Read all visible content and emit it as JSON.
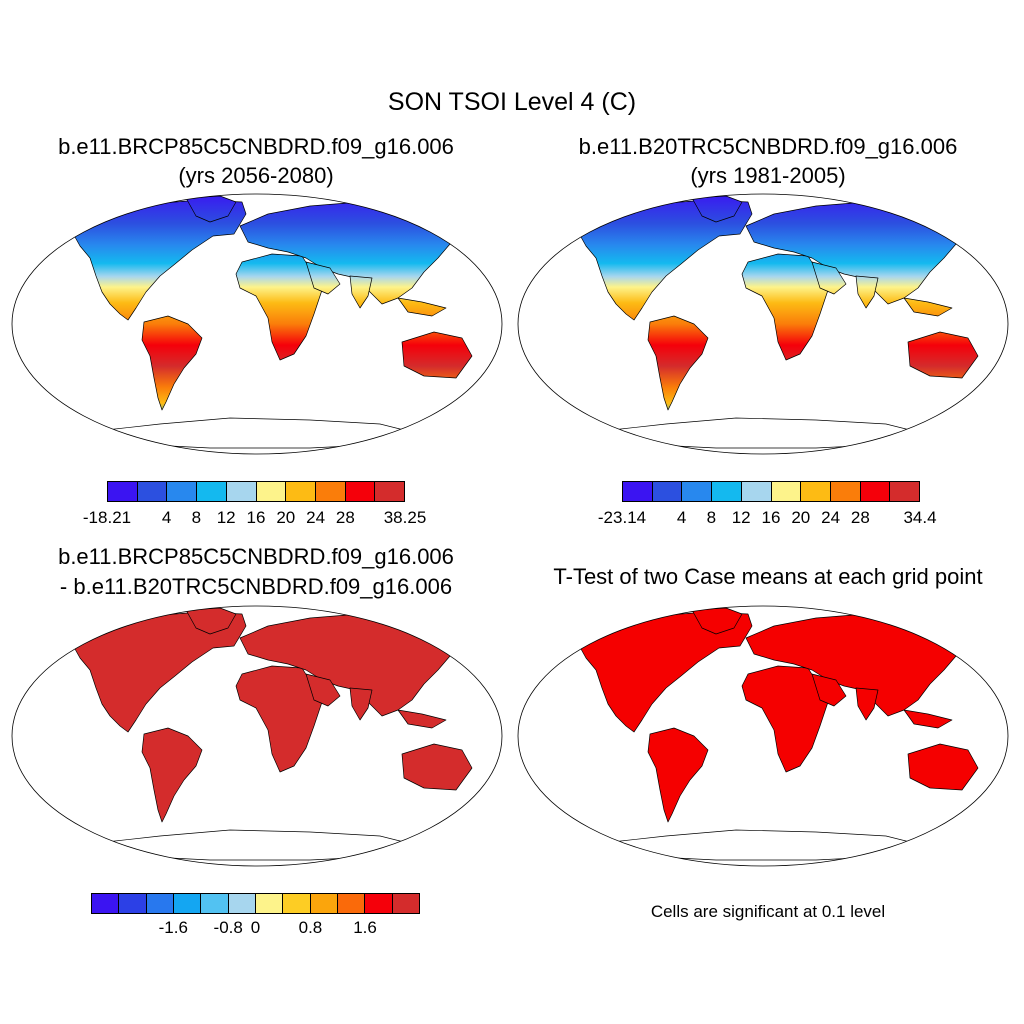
{
  "figure": {
    "title": "SON TSOI Level 4 (C)"
  },
  "panels": [
    {
      "id": "future",
      "title_line1": "b.e11.BRCP85C5CNBDRD.f09_g16.006",
      "title_line2": "(yrs 2056-2080)",
      "colorbar": {
        "colors": [
          "#3b14f2",
          "#2c50e0",
          "#2888ee",
          "#14b9ef",
          "#a7d6ee",
          "#fdf38b",
          "#fdbb14",
          "#fa7d0a",
          "#f5000a",
          "#d42c2c"
        ],
        "tick_labels": [
          "-18.21",
          "4",
          "8",
          "12",
          "16",
          "20",
          "24",
          "28",
          "38.25"
        ]
      }
    },
    {
      "id": "historical",
      "title_line1": "b.e11.B20TRC5CNBDRD.f09_g16.006",
      "title_line2": "(yrs 1981-2005)",
      "colorbar": {
        "colors": [
          "#3b14f2",
          "#2c50e0",
          "#2888ee",
          "#14b9ef",
          "#a7d6ee",
          "#fdf38b",
          "#fdbb14",
          "#fa7d0a",
          "#f5000a",
          "#d42c2c"
        ],
        "tick_labels": [
          "-23.14",
          "4",
          "8",
          "12",
          "16",
          "20",
          "24",
          "28",
          "34.4"
        ]
      }
    },
    {
      "id": "difference",
      "title_line1": "b.e11.BRCP85C5CNBDRD.f09_g16.006",
      "title_line2": "- b.e11.B20TRC5CNBDRD.f09_g16.006",
      "land_color": "#d42c2c",
      "colorbar": {
        "colors": [
          "#3b14f2",
          "#2c40e6",
          "#2878ee",
          "#14a6f2",
          "#52c2f2",
          "#a7d6ee",
          "#fdf38b",
          "#fdcd24",
          "#fba50c",
          "#fa6a0a",
          "#f5000a",
          "#d42c2c"
        ],
        "tick_labels": [
          "-1.6",
          "-0.8",
          "0",
          "0.8",
          "1.6"
        ]
      }
    },
    {
      "id": "ttest",
      "title_line1": "T-Test of two Case means at each grid point",
      "land_color": "#f50000",
      "note": "Cells are significant at 0.1 level"
    }
  ]
}
